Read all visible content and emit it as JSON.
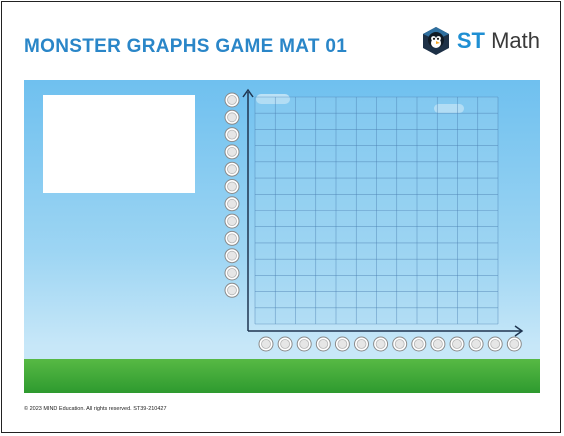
{
  "header": {
    "title": "MONSTER GRAPHS GAME MAT 01",
    "brand": {
      "st": "ST",
      "math": "Math",
      "logo_icon": "penguin-logo-icon"
    }
  },
  "board": {
    "y_slots": 12,
    "x_slots": 14,
    "grid_columns": 12,
    "grid_rows": 14,
    "colors": {
      "sky_top": "#6fc0ef",
      "sky_bottom": "#c7e7f8",
      "grass": "#3aa83a",
      "grid_line": "#4a7fb0",
      "axis": "#1f3550"
    }
  },
  "footer": {
    "copyright": "© 2023 MIND Education. All rights reserved. ST39-210427"
  }
}
